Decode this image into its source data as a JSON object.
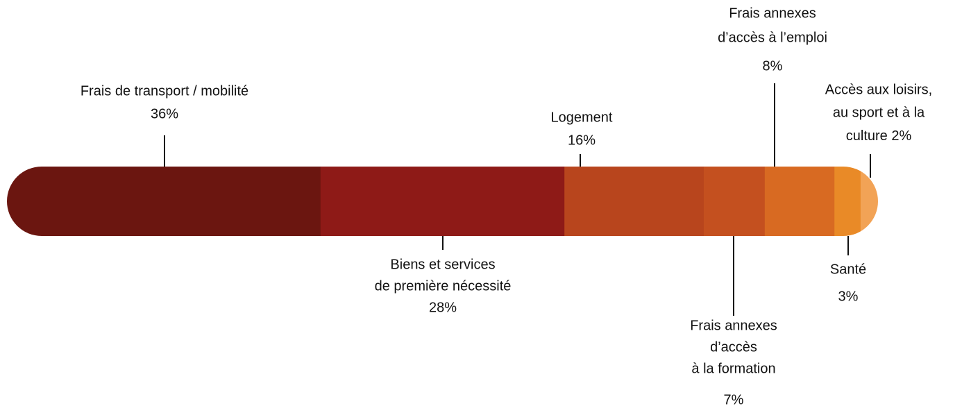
{
  "chart_data": {
    "type": "stacked_bar",
    "orientation": "horizontal",
    "xlim": [
      0,
      100
    ],
    "series": [
      {
        "name": [
          "Frais de transport / mobilité"
        ],
        "color": "#6b1610",
        "values": [
          36
        ],
        "value_labels": [
          "36%"
        ]
      },
      {
        "name": [
          "Biens et services",
          "de première nécessité"
        ],
        "color": "#8e1a17",
        "values": [
          28
        ],
        "value_labels": [
          "28%"
        ]
      },
      {
        "name": [
          "Logement"
        ],
        "color": "#b8451d",
        "values": [
          16
        ],
        "value_labels": [
          "16%"
        ]
      },
      {
        "name": [
          "Frais annexes",
          "d’accès",
          "à la formation"
        ],
        "color": "#c4501f",
        "values": [
          7
        ],
        "value_labels": [
          "7%"
        ]
      },
      {
        "name": [
          "Frais annexes",
          "d’accès à l’emploi"
        ],
        "color": "#d86a22",
        "values": [
          8
        ],
        "value_labels": [
          "8%"
        ]
      },
      {
        "name": [
          "Santé"
        ],
        "color": "#e98a27",
        "values": [
          3
        ],
        "value_labels": [
          "3%"
        ]
      },
      {
        "name": [
          "Accès aux loisirs,",
          "au sport et à la",
          "culture"
        ],
        "color": "#f2a356",
        "values": [
          2
        ],
        "value_labels": [
          "2%"
        ]
      }
    ]
  }
}
